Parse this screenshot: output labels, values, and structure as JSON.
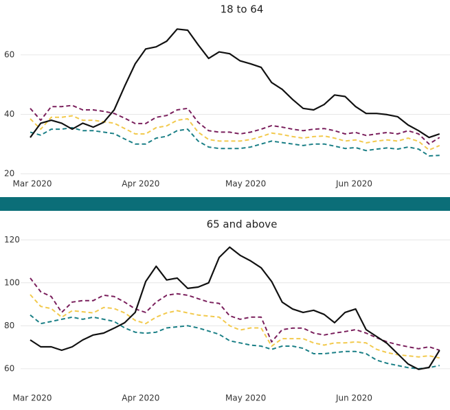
{
  "chart_data": [
    {
      "type": "line",
      "title": "18 to 64",
      "x": [
        0,
        3,
        6,
        9,
        12,
        15,
        18,
        21,
        24,
        27,
        30,
        33,
        36,
        39,
        42,
        45,
        48,
        51,
        54,
        57,
        60,
        63,
        66,
        69,
        72,
        75,
        78,
        81,
        84,
        87,
        90,
        93,
        96,
        99,
        102,
        105,
        108,
        111,
        114,
        117
      ],
      "xlim": [
        0,
        119
      ],
      "xticks": [
        {
          "value": 0,
          "label": "Mar 2020"
        },
        {
          "value": 31,
          "label": "Apr 2020"
        },
        {
          "value": 61,
          "label": "May 2020"
        },
        {
          "value": 92,
          "label": "Jun 2020"
        }
      ],
      "ylim": [
        20,
        72
      ],
      "yticks": [
        20,
        40,
        60
      ],
      "grid": true,
      "series": [
        {
          "color": "#7a1f5c",
          "linestyle": "dashed",
          "values": [
            42,
            38,
            42.6,
            42.6,
            43,
            41.5,
            41.5,
            41,
            40.3,
            38.7,
            36.9,
            36.9,
            39,
            39.6,
            41.5,
            42,
            37.3,
            34.5,
            34,
            34,
            33.4,
            34,
            35,
            36.2,
            35.7,
            35,
            34.5,
            35,
            35.2,
            34.5,
            33.4,
            33.9,
            32.9,
            33.4,
            33.9,
            33.4,
            34.5,
            33.4,
            30,
            32.2
          ]
        },
        {
          "color": "#f2c94c",
          "linestyle": "dashed",
          "values": [
            38.5,
            35,
            39,
            39,
            39.5,
            38,
            38,
            37.5,
            37,
            35.2,
            33.4,
            33.4,
            35.5,
            36.1,
            38,
            38.5,
            34,
            31.5,
            31,
            31,
            31,
            31.5,
            32.5,
            33.7,
            33.2,
            32.5,
            32,
            32.5,
            32.7,
            32,
            31,
            31.4,
            30.4,
            31,
            31.4,
            31,
            32,
            30.9,
            28,
            29.5
          ]
        },
        {
          "color": "#1a7f86",
          "linestyle": "dashed",
          "values": [
            34,
            33,
            35,
            35,
            35.5,
            34.5,
            34.5,
            34,
            33.5,
            31.7,
            30,
            30,
            32,
            32.6,
            34.5,
            35,
            31,
            29,
            28.5,
            28.5,
            28.5,
            29,
            30,
            31,
            30.5,
            30,
            29.5,
            30,
            30,
            29.3,
            28.5,
            28.8,
            27.8,
            28.3,
            28.7,
            28.3,
            29,
            28.3,
            26,
            26.2
          ]
        },
        {
          "color": "#111111",
          "linestyle": "solid",
          "values": [
            32.2,
            37,
            38,
            37,
            35,
            37,
            35.7,
            37.3,
            41.5,
            49.5,
            57,
            62,
            62.7,
            64.6,
            68.7,
            68.3,
            63.4,
            58.8,
            61,
            60.4,
            58,
            57,
            55.8,
            50.7,
            48.4,
            45,
            42,
            41.5,
            43.3,
            46.5,
            46,
            42.6,
            40.3,
            40.3,
            39.9,
            39.2,
            36.4,
            34.5,
            32.2,
            33.4
          ]
        }
      ]
    },
    {
      "type": "line",
      "title": "65 and above",
      "x": [
        0,
        3,
        6,
        9,
        12,
        15,
        18,
        21,
        24,
        27,
        30,
        33,
        36,
        39,
        42,
        45,
        48,
        51,
        54,
        57,
        60,
        63,
        66,
        69,
        72,
        75,
        78,
        81,
        84,
        87,
        90,
        93,
        96,
        99,
        102,
        105,
        108,
        111,
        114,
        117
      ],
      "xlim": [
        0,
        119
      ],
      "xticks": [
        {
          "value": 0,
          "label": "Mar 2020"
        },
        {
          "value": 31,
          "label": "Apr 2020"
        },
        {
          "value": 61,
          "label": "May 2020"
        },
        {
          "value": 92,
          "label": "Jun 2020"
        }
      ],
      "ylim": [
        51,
        122
      ],
      "yticks": [
        60,
        80,
        100,
        120
      ],
      "grid": true,
      "series": [
        {
          "color": "#7a1f5c",
          "linestyle": "dashed",
          "values": [
            102.2,
            95.8,
            93.6,
            86.2,
            91,
            91.7,
            91.7,
            94.2,
            93.6,
            91,
            87.8,
            86.2,
            91,
            94.2,
            94.9,
            94.2,
            92.6,
            91,
            90.4,
            84.6,
            83,
            84,
            84,
            72.5,
            78.2,
            78.9,
            78.9,
            76.6,
            75.7,
            76.6,
            77.3,
            78.2,
            76.6,
            74.4,
            72.5,
            71.2,
            70.2,
            69.3,
            70.2,
            68.6
          ]
        },
        {
          "color": "#f2c94c",
          "linestyle": "dashed",
          "values": [
            94.5,
            89,
            88,
            84,
            87,
            86.5,
            86,
            88.5,
            88,
            86,
            82.5,
            81,
            84,
            86,
            87,
            86,
            85,
            84.5,
            84,
            80,
            78,
            79,
            79,
            70.5,
            74,
            74,
            74,
            72,
            71,
            72,
            72,
            72.5,
            72,
            69,
            67.5,
            66.5,
            66,
            65.5,
            66,
            65
          ]
        },
        {
          "color": "#1a7f86",
          "linestyle": "dashed",
          "values": [
            85,
            81,
            82,
            83,
            84,
            83,
            84,
            83,
            82,
            79,
            77,
            76.5,
            77,
            79,
            79.5,
            80,
            79,
            77.5,
            76,
            73,
            72,
            71,
            70.5,
            69,
            70.5,
            70.5,
            69.5,
            67,
            67,
            67.5,
            68,
            68,
            67,
            64,
            62.5,
            61.5,
            60.5,
            60,
            60.5,
            61.5
          ]
        },
        {
          "color": "#111111",
          "linestyle": "solid",
          "values": [
            73.4,
            70.2,
            70.2,
            68.6,
            70.2,
            73.4,
            75.7,
            76.6,
            78.9,
            81.4,
            86.2,
            100.6,
            107.7,
            101.3,
            102.2,
            97.4,
            98,
            100,
            111.8,
            116.6,
            112.8,
            110.2,
            107,
            100.6,
            91,
            87.8,
            86.2,
            87.2,
            85.3,
            81.4,
            86.2,
            87.8,
            78.2,
            75,
            71.8,
            67,
            62.2,
            59.7,
            60.6,
            68.6
          ]
        }
      ]
    }
  ]
}
